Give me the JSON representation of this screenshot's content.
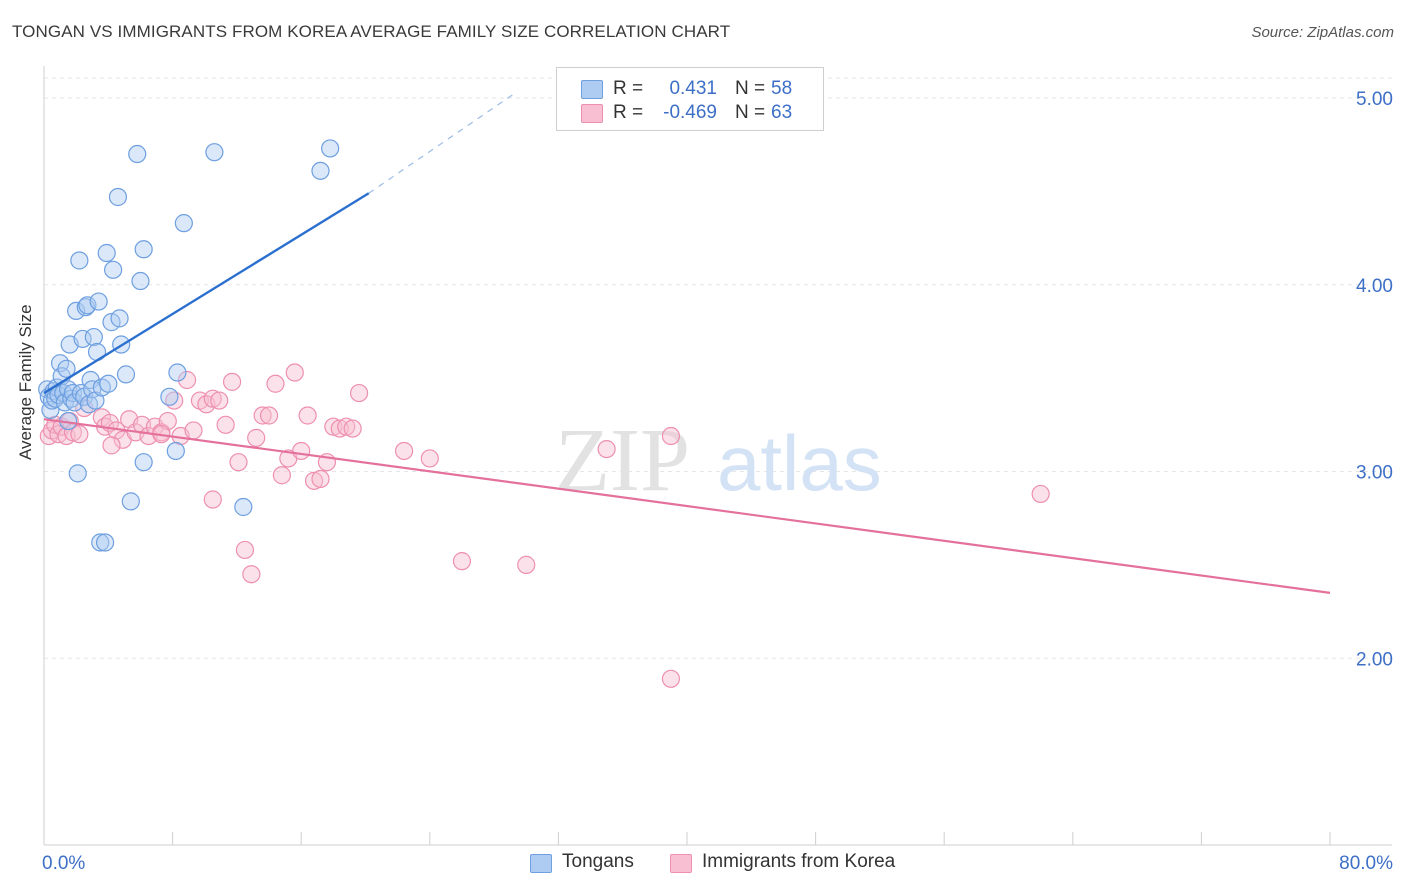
{
  "header": {
    "title": "TONGAN VS IMMIGRANTS FROM KOREA AVERAGE FAMILY SIZE CORRELATION CHART",
    "source": "Source: ZipAtlas.com"
  },
  "watermark": {
    "zip": "ZIP",
    "atlas": "atlas"
  },
  "legend": {
    "tongans": {
      "r_label": "R =",
      "r_value": "0.431",
      "n_label": "N =",
      "n_value": "58"
    },
    "korea": {
      "r_label": "R =",
      "r_value": "-0.469",
      "n_label": "N =",
      "n_value": "63"
    }
  },
  "bottom_legend": {
    "tongans": "Tongans",
    "korea": "Immigrants from Korea"
  },
  "colors": {
    "tongans_fill": "#aecbf2",
    "tongans_stroke": "#6e9fe0",
    "tongans_line": "#2b6fcf",
    "korea_fill": "#f7bfd1",
    "korea_stroke": "#ee8fb0",
    "korea_line": "#e4719b",
    "axis_label": "#3d6fc7",
    "grid": "#e6e6e6"
  },
  "chart_data": {
    "type": "scatter",
    "title": "TONGAN VS IMMIGRANTS FROM KOREA AVERAGE FAMILY SIZE CORRELATION CHART",
    "xlabel": "",
    "ylabel": "Average Family Size",
    "xlim": [
      0,
      80
    ],
    "ylim": [
      1.0,
      5.15
    ],
    "x_tick_labels": [
      "0.0%",
      "80.0%"
    ],
    "y_ticks": [
      2.0,
      3.0,
      4.0,
      5.0
    ],
    "y_tick_labels": [
      "2.00",
      "3.00",
      "4.00",
      "5.00"
    ],
    "grid": true,
    "legend_position": "top-center",
    "series": [
      {
        "name": "Tongans",
        "r": 0.431,
        "n": 58,
        "trend": {
          "x": [
            0.0,
            20.2
          ],
          "y": [
            3.42,
            4.49
          ],
          "dashed_extension_to": [
            29.2,
            5.02
          ]
        },
        "points": [
          [
            0.2,
            3.44
          ],
          [
            0.3,
            3.4
          ],
          [
            0.4,
            3.33
          ],
          [
            0.5,
            3.38
          ],
          [
            0.6,
            3.43
          ],
          [
            0.7,
            3.39
          ],
          [
            0.8,
            3.45
          ],
          [
            0.9,
            3.41
          ],
          [
            1.0,
            3.58
          ],
          [
            1.1,
            3.51
          ],
          [
            1.2,
            3.42
          ],
          [
            1.3,
            3.37
          ],
          [
            1.4,
            3.55
          ],
          [
            1.5,
            3.27
          ],
          [
            1.5,
            3.44
          ],
          [
            1.6,
            3.68
          ],
          [
            1.7,
            3.39
          ],
          [
            1.8,
            3.42
          ],
          [
            1.9,
            3.37
          ],
          [
            2.0,
            3.86
          ],
          [
            2.1,
            2.99
          ],
          [
            2.2,
            4.13
          ],
          [
            2.3,
            3.42
          ],
          [
            2.4,
            3.71
          ],
          [
            2.5,
            3.4
          ],
          [
            2.6,
            3.88
          ],
          [
            2.7,
            3.89
          ],
          [
            2.8,
            3.36
          ],
          [
            2.9,
            3.49
          ],
          [
            3.0,
            3.44
          ],
          [
            3.1,
            3.72
          ],
          [
            3.2,
            3.38
          ],
          [
            3.3,
            3.64
          ],
          [
            3.4,
            3.91
          ],
          [
            3.5,
            2.62
          ],
          [
            3.6,
            3.45
          ],
          [
            3.8,
            2.62
          ],
          [
            3.9,
            4.17
          ],
          [
            4.0,
            3.47
          ],
          [
            4.2,
            3.8
          ],
          [
            4.3,
            4.08
          ],
          [
            4.6,
            4.47
          ],
          [
            4.7,
            3.82
          ],
          [
            4.8,
            3.68
          ],
          [
            5.1,
            3.52
          ],
          [
            5.4,
            2.84
          ],
          [
            5.8,
            4.7
          ],
          [
            6.0,
            4.02
          ],
          [
            6.2,
            4.19
          ],
          [
            6.2,
            3.05
          ],
          [
            7.8,
            3.4
          ],
          [
            8.2,
            3.11
          ],
          [
            8.3,
            3.53
          ],
          [
            8.7,
            4.33
          ],
          [
            10.6,
            4.71
          ],
          [
            17.2,
            4.61
          ],
          [
            17.8,
            4.73
          ],
          [
            12.4,
            2.81
          ]
        ]
      },
      {
        "name": "Immigrants from Korea",
        "r": -0.469,
        "n": 63,
        "trend": {
          "x": [
            0.0,
            80.0
          ],
          "y": [
            3.28,
            2.35
          ]
        },
        "points": [
          [
            0.3,
            3.19
          ],
          [
            0.5,
            3.22
          ],
          [
            0.7,
            3.25
          ],
          [
            0.9,
            3.2
          ],
          [
            1.1,
            3.24
          ],
          [
            1.4,
            3.19
          ],
          [
            1.6,
            3.27
          ],
          [
            1.8,
            3.21
          ],
          [
            2.2,
            3.2
          ],
          [
            3.6,
            3.29
          ],
          [
            3.8,
            3.24
          ],
          [
            4.1,
            3.26
          ],
          [
            4.5,
            3.22
          ],
          [
            4.9,
            3.17
          ],
          [
            5.3,
            3.28
          ],
          [
            5.7,
            3.21
          ],
          [
            6.1,
            3.25
          ],
          [
            6.5,
            3.19
          ],
          [
            6.9,
            3.24
          ],
          [
            7.3,
            3.21
          ],
          [
            7.7,
            3.27
          ],
          [
            8.1,
            3.38
          ],
          [
            8.5,
            3.19
          ],
          [
            8.9,
            3.49
          ],
          [
            9.3,
            3.22
          ],
          [
            9.7,
            3.38
          ],
          [
            10.1,
            3.36
          ],
          [
            10.5,
            3.39
          ],
          [
            10.9,
            3.38
          ],
          [
            11.3,
            3.25
          ],
          [
            11.7,
            3.48
          ],
          [
            12.1,
            3.05
          ],
          [
            12.5,
            2.58
          ],
          [
            12.9,
            2.45
          ],
          [
            13.2,
            3.18
          ],
          [
            13.6,
            3.3
          ],
          [
            14.0,
            3.3
          ],
          [
            14.4,
            3.47
          ],
          [
            14.8,
            2.98
          ],
          [
            15.2,
            3.07
          ],
          [
            15.6,
            3.53
          ],
          [
            16.0,
            3.11
          ],
          [
            16.4,
            3.3
          ],
          [
            16.8,
            2.95
          ],
          [
            17.2,
            2.96
          ],
          [
            17.6,
            3.05
          ],
          [
            18.0,
            3.24
          ],
          [
            18.4,
            3.23
          ],
          [
            18.8,
            3.24
          ],
          [
            19.2,
            3.23
          ],
          [
            19.6,
            3.42
          ],
          [
            22.4,
            3.11
          ],
          [
            24.0,
            3.07
          ],
          [
            26.0,
            2.52
          ],
          [
            30.0,
            2.5
          ],
          [
            35.0,
            3.12
          ],
          [
            39.0,
            3.19
          ],
          [
            62.0,
            2.88
          ],
          [
            39.0,
            1.89
          ],
          [
            4.2,
            3.14
          ],
          [
            7.3,
            3.2
          ],
          [
            10.5,
            2.85
          ],
          [
            2.5,
            3.34
          ]
        ]
      }
    ]
  }
}
